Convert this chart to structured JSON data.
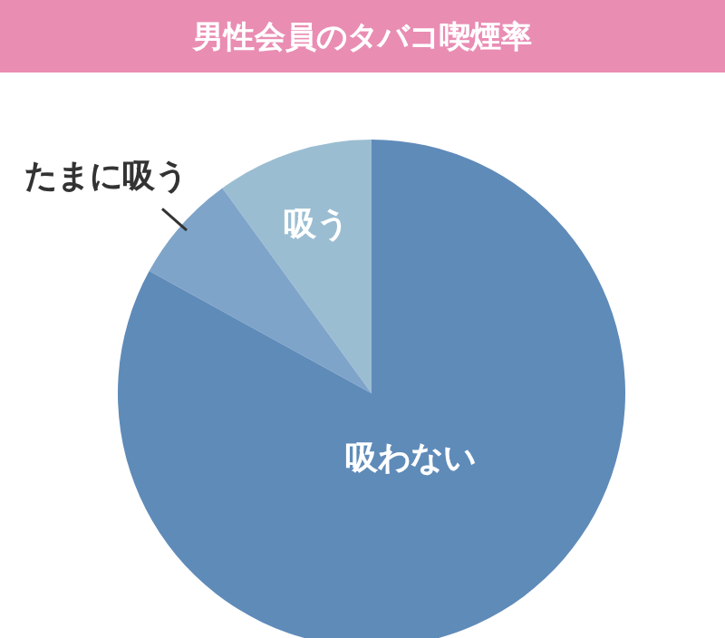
{
  "chart_data": {
    "type": "pie",
    "title": "男性会員のタバコ喫煙率",
    "categories": [
      "吸う",
      "たまに吸う",
      "吸わない"
    ],
    "values": [
      10,
      7,
      83
    ],
    "colors": [
      "#9bbdd2",
      "#7fa4c9",
      "#5f8bb9"
    ]
  }
}
